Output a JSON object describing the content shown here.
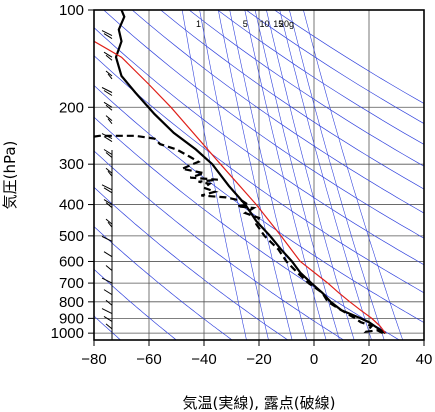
{
  "chart_data": {
    "type": "line",
    "title": "",
    "xlabel": "気温(実線), 露点(破線)",
    "ylabel": "気圧(hPa)",
    "xlim": [
      -80,
      40
    ],
    "ylim": [
      1050,
      100
    ],
    "y_scale": "log",
    "x_ticks": [
      -80,
      -60,
      -40,
      -20,
      0,
      20,
      40
    ],
    "x_tick_labels": [
      "−80",
      "−60",
      "−40",
      "−20",
      "0",
      "20",
      "40"
    ],
    "y_ticks": [
      100,
      200,
      300,
      400,
      500,
      600,
      700,
      800,
      900,
      1000
    ],
    "y_tick_labels": [
      "100",
      "200",
      "300",
      "400",
      "500",
      "600",
      "700",
      "800",
      "900",
      "1000"
    ],
    "mixing_ratio_labels": [
      "1",
      "5",
      "10",
      "15",
      "20g"
    ],
    "mixing_ratio_label_temps": [
      -42,
      -25,
      -18,
      -13,
      -10
    ],
    "dry_adiabats_theta_K": [
      200,
      220,
      240,
      260,
      280,
      300,
      320,
      340,
      360,
      380,
      400,
      420,
      440,
      460,
      480,
      500
    ],
    "mixing_ratio_lines_g_per_kg": [
      0.5,
      1,
      2,
      3,
      5,
      7,
      10,
      15,
      20,
      30
    ],
    "series": [
      {
        "style": "solid-black",
        "points": [
          [
            26,
            1000
          ],
          [
            22,
            950
          ],
          [
            20,
            925
          ],
          [
            17,
            900
          ],
          [
            10,
            850
          ],
          [
            6,
            800
          ],
          [
            3,
            750
          ],
          [
            -1,
            700
          ],
          [
            -5,
            650
          ],
          [
            -8,
            600
          ],
          [
            -12,
            550
          ],
          [
            -16,
            500
          ],
          [
            -21,
            450
          ],
          [
            -25,
            400
          ],
          [
            -31,
            350
          ],
          [
            -37,
            300
          ],
          [
            -43,
            270
          ],
          [
            -51,
            240
          ],
          [
            -58,
            210
          ],
          [
            -65,
            180
          ],
          [
            -70,
            160
          ],
          [
            -72,
            140
          ],
          [
            -70,
            125
          ],
          [
            -71,
            115
          ],
          [
            -69,
            105
          ],
          [
            -70,
            100
          ]
        ]
      },
      {
        "style": "solid-red",
        "points": [
          [
            26,
            1000
          ],
          [
            24,
            950
          ],
          [
            21,
            900
          ],
          [
            17,
            850
          ],
          [
            13,
            800
          ],
          [
            9,
            750
          ],
          [
            5,
            700
          ],
          [
            -5,
            600
          ],
          [
            -12,
            500
          ],
          [
            -21,
            400
          ],
          [
            -34,
            300
          ],
          [
            -52,
            200
          ],
          [
            -60,
            170
          ],
          [
            -70,
            140
          ],
          [
            -80,
            125
          ]
        ]
      },
      {
        "style": "dashed-black",
        "points": [
          [
            25,
            1000
          ],
          [
            23,
            980
          ],
          [
            19,
            990
          ],
          [
            21,
            950
          ],
          [
            17,
            925
          ],
          [
            15,
            900
          ],
          [
            10,
            850
          ],
          [
            5,
            800
          ],
          [
            3,
            750
          ],
          [
            -2,
            700
          ],
          [
            -6,
            650
          ],
          [
            -10,
            600
          ],
          [
            -13,
            550
          ],
          [
            -18,
            500
          ],
          [
            -21,
            460
          ],
          [
            -20,
            440
          ],
          [
            -25,
            425
          ],
          [
            -22,
            410
          ],
          [
            -28,
            405
          ],
          [
            -24,
            400
          ],
          [
            -26,
            390
          ],
          [
            -32,
            380
          ],
          [
            -41,
            375
          ],
          [
            -36,
            365
          ],
          [
            -40,
            355
          ],
          [
            -38,
            345
          ],
          [
            -42,
            340
          ],
          [
            -35,
            335
          ],
          [
            -45,
            330
          ],
          [
            -40,
            320
          ],
          [
            -48,
            310
          ],
          [
            -42,
            295
          ],
          [
            -45,
            285
          ],
          [
            -50,
            270
          ],
          [
            -56,
            260
          ],
          [
            -58,
            250
          ],
          [
            -65,
            245
          ],
          [
            -78,
            245
          ],
          [
            -82,
            248
          ]
        ]
      }
    ]
  }
}
